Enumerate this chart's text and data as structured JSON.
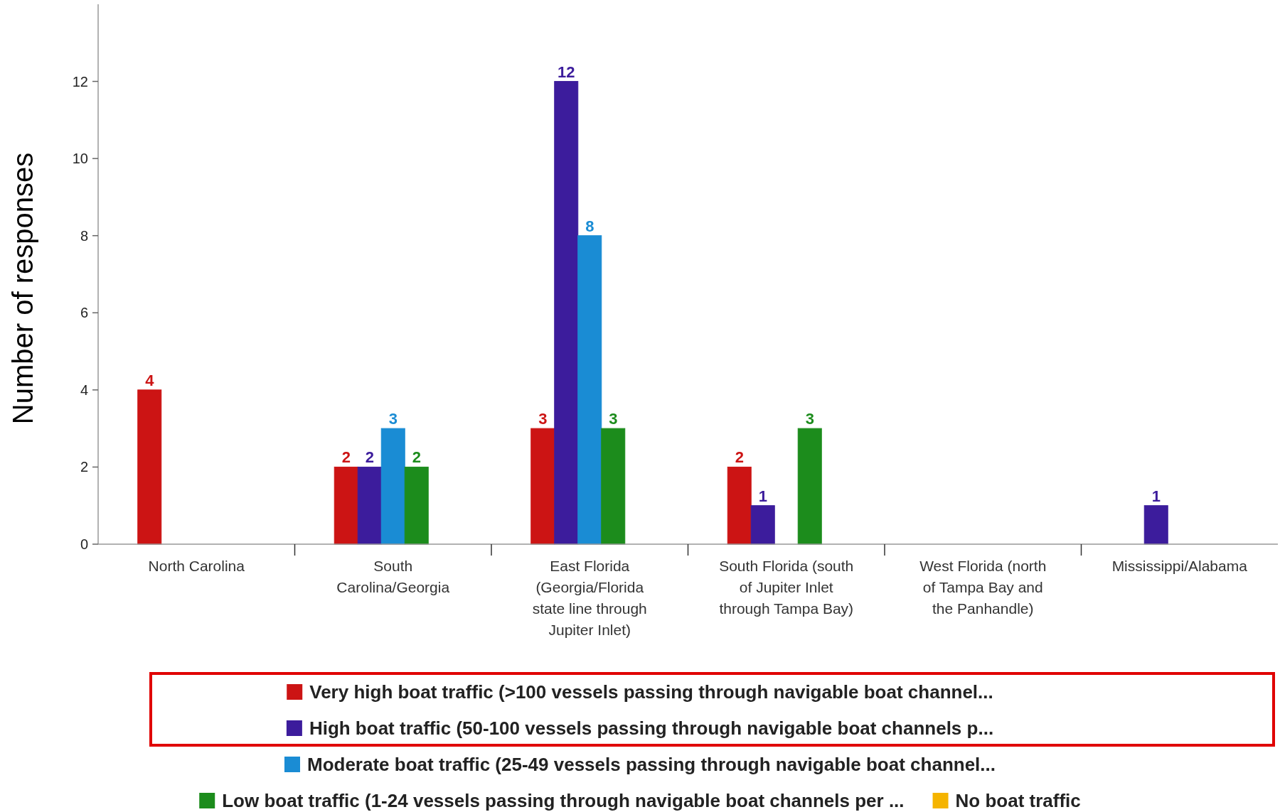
{
  "chart_data": {
    "type": "bar",
    "ylabel": "Number of responses",
    "categories": [
      "North Carolina",
      "South Carolina/Georgia",
      "East Florida (Georgia/Florida state line through Jupiter Inlet)",
      "South Florida (south of Jupiter Inlet through Tampa Bay)",
      "West Florida (north of Tampa Bay and the Panhandle)",
      "Mississippi/Alabama"
    ],
    "series": [
      {
        "name": "Very high boat traffic (>100 vessels passing through navigable boat channel...",
        "color": "#cc1414",
        "values": [
          4,
          2,
          3,
          2,
          null,
          null
        ]
      },
      {
        "name": "High boat traffic (50-100 vessels passing through navigable boat channels p...",
        "color": "#3c1c9c",
        "values": [
          null,
          2,
          12,
          1,
          null,
          1
        ]
      },
      {
        "name": "Moderate boat traffic (25-49 vessels passing through navigable boat channel...",
        "color": "#1a8cd4",
        "values": [
          null,
          3,
          8,
          null,
          null,
          null
        ]
      },
      {
        "name": "Low boat traffic (1-24 vessels passing through navigable boat channels per ...",
        "color": "#1c8c1c",
        "values": [
          null,
          2,
          3,
          3,
          null,
          null
        ]
      },
      {
        "name": "No boat traffic",
        "color": "#f5b400",
        "values": [
          null,
          null,
          null,
          null,
          null,
          null
        ]
      }
    ],
    "ylim": [
      0,
      14
    ],
    "yticks": [
      0,
      2,
      4,
      6,
      8,
      10,
      12
    ],
    "grid": false,
    "legend": "bottom",
    "data_labels": true
  }
}
